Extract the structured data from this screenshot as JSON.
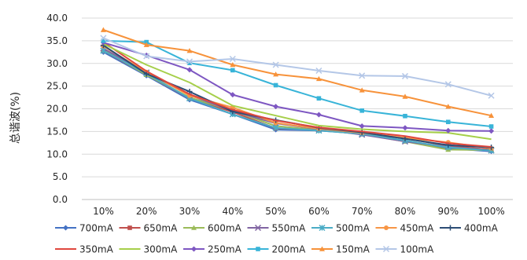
{
  "chart_data": {
    "type": "line",
    "title": "",
    "xlabel": "",
    "ylabel": "总谐波(%)",
    "categories": [
      "10%",
      "20%",
      "30%",
      "40%",
      "50%",
      "60%",
      "70%",
      "80%",
      "90%",
      "100%"
    ],
    "ylim": [
      0,
      40
    ],
    "ytick_labels": [
      "0.0",
      "5.0",
      "10.0",
      "15.0",
      "20.0",
      "25.0",
      "30.0",
      "35.0",
      "40.0"
    ],
    "grid": "horizontal",
    "legend_position": "bottom",
    "series": [
      {
        "name": "700mA",
        "color": "#4472C4",
        "marker": "diamond",
        "values": [
          32.5,
          27.3,
          22.0,
          18.8,
          15.4,
          15.2,
          14.5,
          13.0,
          11.3,
          10.6
        ]
      },
      {
        "name": "650mA",
        "color": "#C0504D",
        "marker": "square",
        "values": [
          32.8,
          27.6,
          22.3,
          19.3,
          15.7,
          15.3,
          14.5,
          13.5,
          11.8,
          11.0
        ]
      },
      {
        "name": "600mA",
        "color": "#9BBB59",
        "marker": "triangle",
        "values": [
          33.0,
          27.5,
          22.5,
          19.6,
          16.2,
          15.3,
          14.4,
          12.8,
          11.0,
          10.9
        ]
      },
      {
        "name": "550mA",
        "color": "#8064A2",
        "marker": "x",
        "values": [
          33.3,
          28.0,
          23.0,
          19.5,
          16.8,
          15.5,
          14.3,
          12.8,
          11.6,
          10.8
        ]
      },
      {
        "name": "500mA",
        "color": "#4BACC6",
        "marker": "asterisk",
        "values": [
          32.8,
          27.8,
          22.3,
          18.8,
          15.8,
          15.2,
          14.5,
          13.0,
          11.5,
          10.8
        ]
      },
      {
        "name": "450mA",
        "color": "#F79646",
        "marker": "circle",
        "values": [
          33.8,
          28.1,
          22.9,
          20.3,
          16.9,
          15.6,
          14.7,
          13.6,
          12.6,
          11.3
        ]
      },
      {
        "name": "400mA",
        "color": "#2C4D75",
        "marker": "plus",
        "values": [
          34.0,
          27.7,
          23.8,
          19.4,
          17.5,
          15.8,
          14.8,
          13.4,
          12.0,
          11.5
        ]
      },
      {
        "name": "350mA",
        "color": "#E0473E",
        "marker": "none",
        "values": [
          34.7,
          28.3,
          23.2,
          19.8,
          17.4,
          15.9,
          15.0,
          14.0,
          12.4,
          11.6
        ]
      },
      {
        "name": "300mA",
        "color": "#A6CF4A",
        "marker": "none",
        "values": [
          34.3,
          29.7,
          25.8,
          20.7,
          18.5,
          16.3,
          15.5,
          15.0,
          14.7,
          13.3
        ]
      },
      {
        "name": "250mA",
        "color": "#7E57C2",
        "marker": "diamond",
        "values": [
          34.6,
          31.8,
          28.6,
          23.1,
          20.5,
          18.7,
          16.2,
          15.8,
          15.2,
          15.1
        ]
      },
      {
        "name": "200mA",
        "color": "#38B4D8",
        "marker": "square",
        "values": [
          35.0,
          34.7,
          30.1,
          28.5,
          25.2,
          22.3,
          19.6,
          18.4,
          17.1,
          16.1
        ]
      },
      {
        "name": "150mA",
        "color": "#F7923A",
        "marker": "triangle",
        "values": [
          37.4,
          34.1,
          32.8,
          29.7,
          27.6,
          26.6,
          24.1,
          22.7,
          20.5,
          18.5
        ]
      },
      {
        "name": "100mA",
        "color": "#B4C7E7",
        "marker": "x",
        "values": [
          35.6,
          31.6,
          30.4,
          31.0,
          29.7,
          28.4,
          27.3,
          27.2,
          25.4,
          22.9
        ]
      }
    ]
  }
}
